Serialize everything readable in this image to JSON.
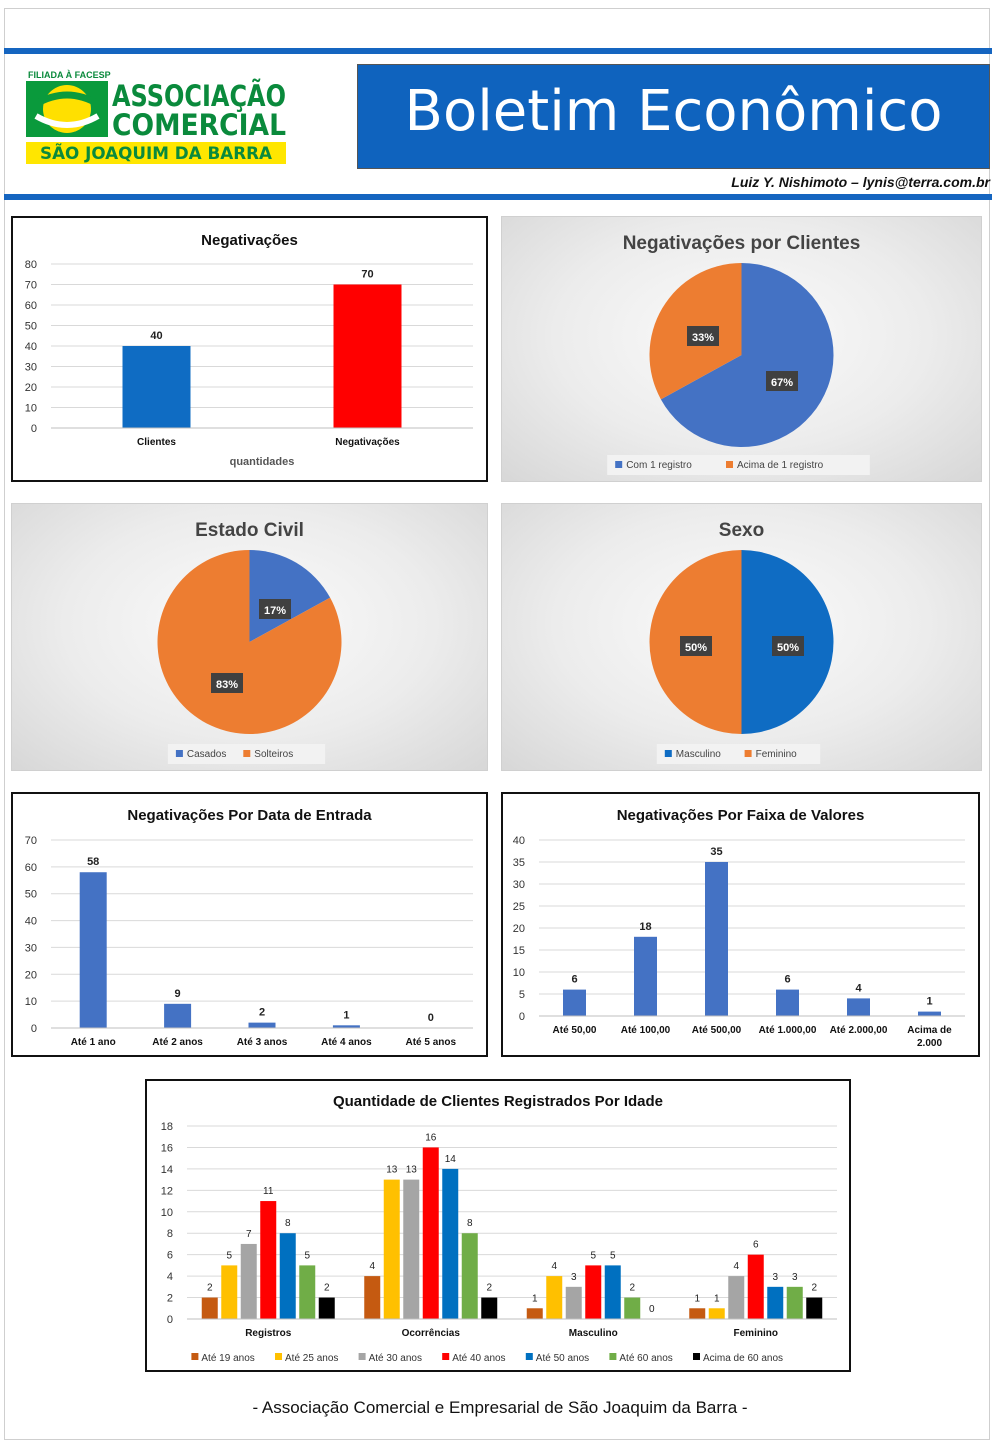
{
  "header": {
    "logo": {
      "top_text": "FILIADA À FACESP",
      "line1": "ASSOCIAÇÃO",
      "line2": "COMERCIAL",
      "banner": "SÃO JOAQUIM DA BARRA"
    },
    "title": "Boletim Econômico",
    "author": "Luiz Y. Nishimoto – lynis@terra.com.br"
  },
  "footer": {
    "text": "- Associação Comercial e Empresarial de São Joaquim da Barra -"
  },
  "colors": {
    "blue": "#1565c0",
    "orange": "#ed7d31",
    "pie_blue": "#4472c4",
    "bar_blue": "#4472c4",
    "red": "#ff0000"
  },
  "chart_data": [
    {
      "id": "negativacoes",
      "type": "bar",
      "title": "Negativações",
      "xlabel": "quantidades",
      "categories": [
        "Clientes",
        "Negativações"
      ],
      "values": [
        40,
        70
      ],
      "colors": [
        "#0f6cc3",
        "#ff0000"
      ],
      "ylim": [
        0,
        80
      ],
      "yticks": [
        0,
        10,
        20,
        30,
        40,
        50,
        60,
        70,
        80
      ],
      "grid": true
    },
    {
      "id": "negativacoes-por-clientes",
      "type": "pie",
      "title": "Negativações por Clientes",
      "labels": [
        "Com 1 registro",
        "Acima de 1 registro"
      ],
      "values": [
        67,
        33
      ],
      "value_labels": [
        "67%",
        "33%"
      ],
      "colors": [
        "#4472c4",
        "#ed7d31"
      ],
      "legend": "bottom"
    },
    {
      "id": "estado-civil",
      "type": "pie",
      "title": "Estado Civil",
      "labels": [
        "Casados",
        "Solteiros"
      ],
      "values": [
        17,
        83
      ],
      "value_labels": [
        "17%",
        "83%"
      ],
      "colors": [
        "#4472c4",
        "#ed7d31"
      ],
      "legend": "bottom"
    },
    {
      "id": "sexo",
      "type": "pie",
      "title": "Sexo",
      "labels": [
        "Masculino",
        "Feminino"
      ],
      "values": [
        50,
        50
      ],
      "value_labels": [
        "50%",
        "50%"
      ],
      "colors": [
        "#0f6cc3",
        "#ed7d31"
      ],
      "legend": "bottom"
    },
    {
      "id": "data-de-entrada",
      "type": "bar",
      "title": "Negativações Por Data de Entrada",
      "categories": [
        "Até 1 ano",
        "Até 2 anos",
        "Até 3 anos",
        "Até 4 anos",
        "Até 5 anos"
      ],
      "values": [
        58,
        9,
        2,
        1,
        0
      ],
      "colors": [
        "#4472c4"
      ],
      "ylim": [
        0,
        70
      ],
      "yticks": [
        0,
        10,
        20,
        30,
        40,
        50,
        60,
        70
      ],
      "grid": true
    },
    {
      "id": "faixa-de-valores",
      "type": "bar",
      "title": "Negativações Por Faixa de Valores",
      "categories": [
        "Até 50,00",
        "Até 100,00",
        "Até 500,00",
        "Até 1.000,00",
        "Até 2.000,00",
        "Acima de 2.000"
      ],
      "values": [
        6,
        18,
        35,
        6,
        4,
        1
      ],
      "colors": [
        "#4472c4"
      ],
      "ylim": [
        0,
        40
      ],
      "yticks": [
        0,
        5,
        10,
        15,
        20,
        25,
        30,
        35,
        40
      ],
      "grid": true
    },
    {
      "id": "por-idade",
      "type": "bar",
      "title": "Quantidade de Clientes Registrados Por Idade",
      "categories": [
        "Registros",
        "Ocorrências",
        "Masculino",
        "Feminino"
      ],
      "series": [
        {
          "name": "Até 19 anos",
          "color": "#c55a11",
          "values": [
            2,
            4,
            1,
            1
          ]
        },
        {
          "name": "Até 25 anos",
          "color": "#ffc000",
          "values": [
            5,
            13,
            4,
            1
          ]
        },
        {
          "name": "Até 30 anos",
          "color": "#a5a5a5",
          "values": [
            7,
            13,
            3,
            4
          ]
        },
        {
          "name": "Até 40 anos",
          "color": "#ff0000",
          "values": [
            11,
            16,
            5,
            6
          ]
        },
        {
          "name": "Até 50 anos",
          "color": "#0070c0",
          "values": [
            8,
            14,
            5,
            3
          ]
        },
        {
          "name": "Até 60 anos",
          "color": "#70ad47",
          "values": [
            5,
            8,
            2,
            3
          ]
        },
        {
          "name": "Acima de 60 anos",
          "color": "#000000",
          "values": [
            2,
            2,
            0,
            2
          ]
        }
      ],
      "ylim": [
        0,
        18
      ],
      "yticks": [
        0,
        2,
        4,
        6,
        8,
        10,
        12,
        14,
        16,
        18
      ],
      "grid": true,
      "legend": "bottom"
    }
  ]
}
